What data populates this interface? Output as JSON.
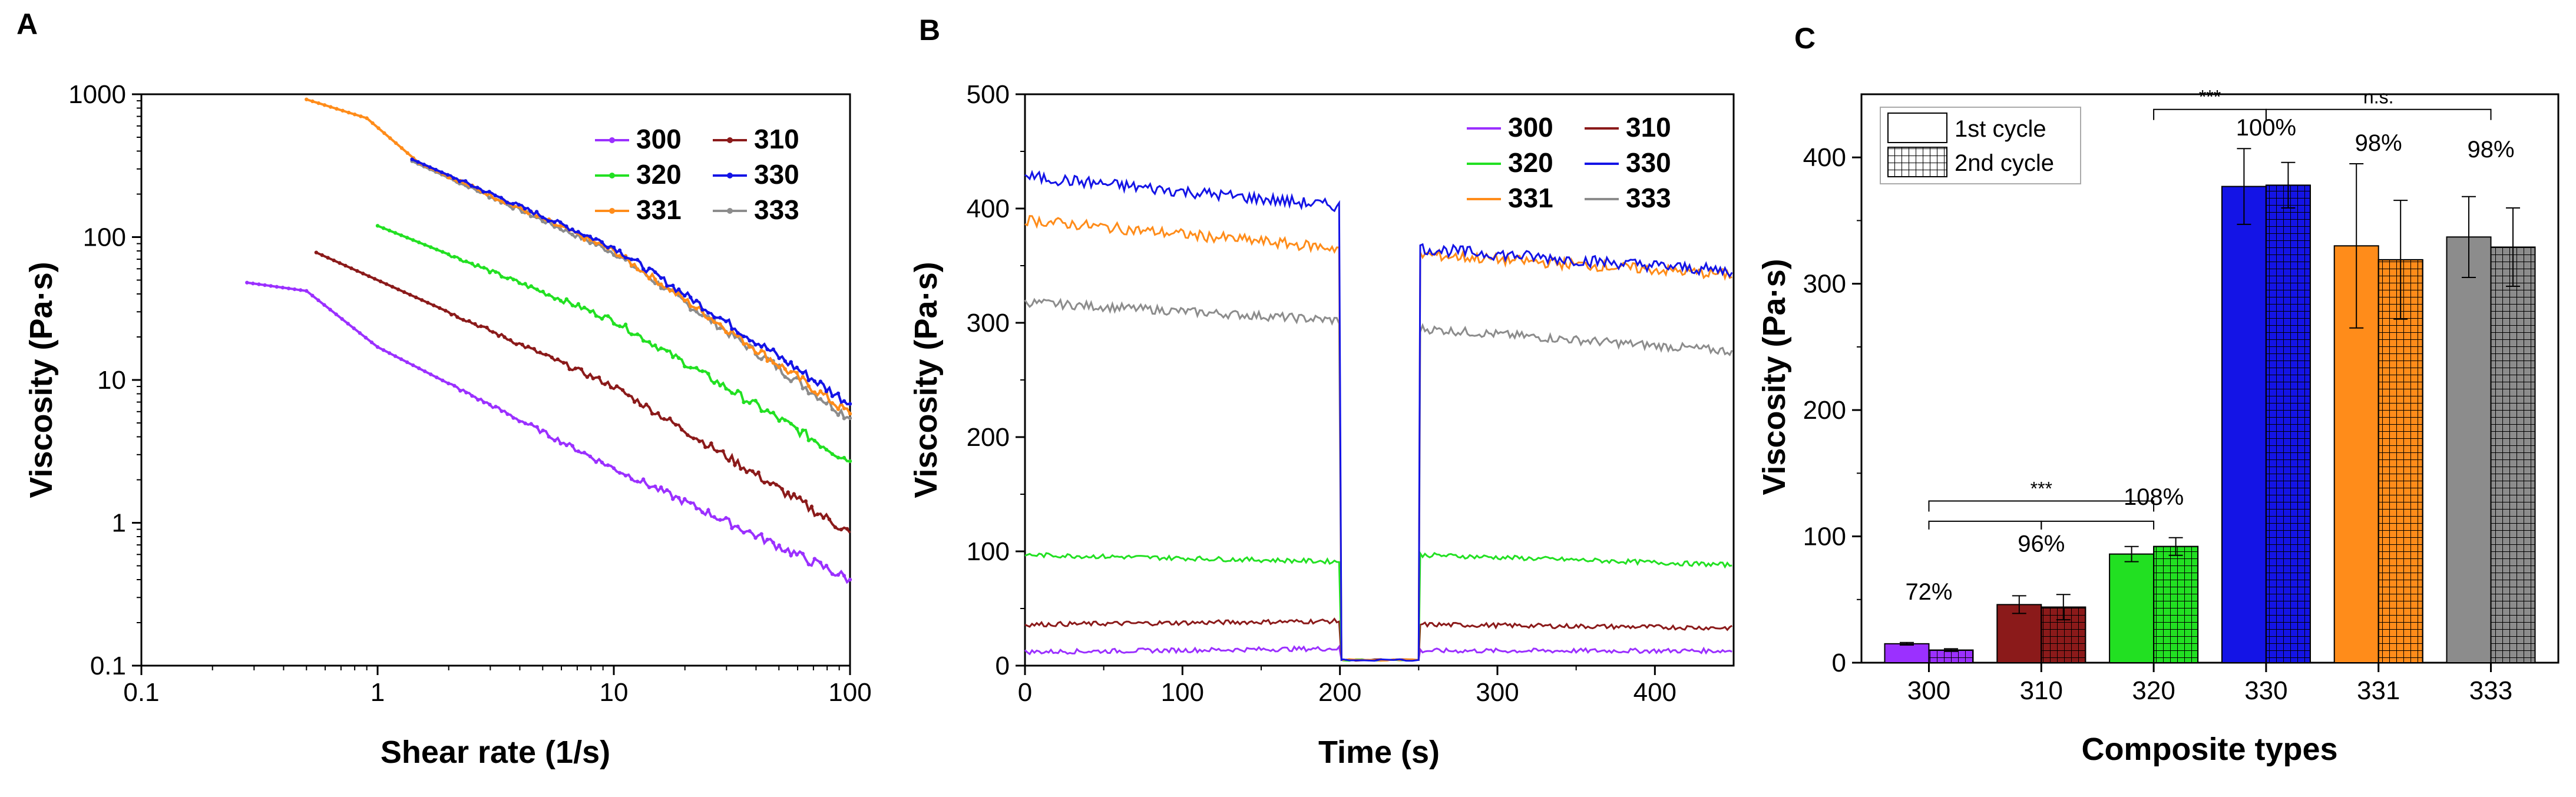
{
  "colors": {
    "300": "#9b30ff",
    "310": "#8b1a1a",
    "320": "#22e022",
    "330": "#1414e6",
    "331": "#ff8c1a",
    "333": "#8c8c8c"
  },
  "chart_data": [
    {
      "panel": "A",
      "type": "line",
      "xscale": "log",
      "yscale": "log",
      "title": "",
      "xlabel": "Shear rate (1/s)",
      "ylabel": "Viscosity (Pa·s)",
      "xlim": [
        0.1,
        100
      ],
      "ylim": [
        0.1,
        1000
      ],
      "xticks": [
        "0.1",
        "1",
        "10",
        "100"
      ],
      "yticks": [
        "0.1",
        "1",
        "10",
        "100",
        "1000"
      ],
      "legend_location": "top-right",
      "series": [
        {
          "name": "300",
          "x": [
            0.28,
            0.5,
            1,
            10,
            100
          ],
          "y": [
            48,
            42,
            17,
            2.4,
            0.4
          ]
        },
        {
          "name": "310",
          "x": [
            0.55,
            1,
            10,
            100
          ],
          "y": [
            78,
            50,
            9,
            0.85
          ]
        },
        {
          "name": "320",
          "x": [
            1,
            10,
            100
          ],
          "y": [
            120,
            26,
            2.7
          ]
        },
        {
          "name": "330",
          "x": [
            1.4,
            10,
            100
          ],
          "y": [
            350,
            85,
            6.8
          ]
        },
        {
          "name": "331",
          "x": [
            0.5,
            0.9,
            1.5,
            10,
            100
          ],
          "y": [
            920,
            680,
            330,
            80,
            5.8
          ]
        },
        {
          "name": "333",
          "x": [
            1.4,
            10,
            100
          ],
          "y": [
            340,
            78,
            5.4
          ]
        }
      ]
    },
    {
      "panel": "B",
      "type": "line",
      "title": "",
      "xlabel": "Time (s)",
      "ylabel": "Viscosity (Pa·s)",
      "xlim": [
        0,
        450
      ],
      "ylim": [
        0,
        500
      ],
      "xticks": [
        "0",
        "100",
        "200",
        "300",
        "400"
      ],
      "yticks": [
        "0",
        "100",
        "200",
        "300",
        "400",
        "500"
      ],
      "legend_location": "top-right",
      "low_shear_interval": [
        200,
        250
      ],
      "low_shear_level": 5,
      "series": [
        {
          "name": "300",
          "phase1": [
            12,
            15
          ],
          "phase3": [
            13,
            13
          ]
        },
        {
          "name": "310",
          "phase1": [
            36,
            39
          ],
          "phase3": [
            36,
            33
          ]
        },
        {
          "name": "320",
          "phase1": [
            97,
            91
          ],
          "phase3": [
            97,
            88
          ]
        },
        {
          "name": "330",
          "phase1": [
            428,
            402
          ],
          "phase3": [
            365,
            345
          ]
        },
        {
          "name": "331",
          "phase1": [
            390,
            365
          ],
          "phase3": [
            360,
            342
          ]
        },
        {
          "name": "333",
          "phase1": [
            318,
            302
          ],
          "phase3": [
            295,
            275
          ]
        }
      ]
    },
    {
      "panel": "C",
      "type": "bar",
      "title": "",
      "xlabel": "Composite types",
      "ylabel": "Viscosity (Pa·s)",
      "ylim": [
        0,
        450
      ],
      "yticks": [
        "0",
        "100",
        "200",
        "300",
        "400"
      ],
      "categories": [
        "300",
        "310",
        "320",
        "330",
        "331",
        "333"
      ],
      "legend_location": "top-left",
      "series": [
        {
          "name": "1st cycle",
          "values": [
            15,
            46,
            86,
            377,
            330,
            337
          ],
          "errors": [
            1,
            7,
            6,
            30,
            65,
            32
          ]
        },
        {
          "name": "2nd cycle",
          "values": [
            10,
            44,
            92,
            378,
            319,
            329
          ],
          "errors": [
            1,
            10,
            7,
            18,
            47,
            31
          ]
        }
      ],
      "recovery_labels": [
        "72%",
        "96%",
        "108%",
        "100%",
        "98%",
        "98%"
      ],
      "significance": [
        {
          "label": "***",
          "from": "300",
          "to": "320"
        },
        {
          "label": "***",
          "from": "320",
          "to": "330"
        },
        {
          "label": "n.s.",
          "from": "330",
          "to": "333"
        }
      ]
    }
  ],
  "panels": {
    "a": {
      "letter": "A"
    },
    "b": {
      "letter": "B"
    },
    "c": {
      "letter": "C"
    }
  }
}
